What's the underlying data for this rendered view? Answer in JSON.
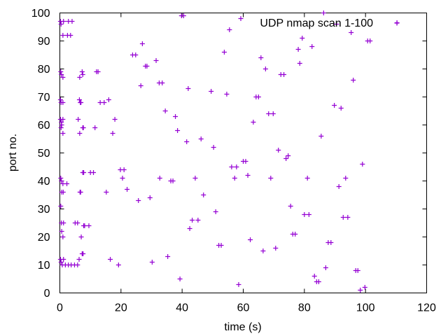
{
  "chart_data": {
    "type": "scatter",
    "title": "",
    "xlabel": "time (s)",
    "ylabel": "port no.",
    "xlim": [
      0,
      120
    ],
    "ylim": [
      0,
      100
    ],
    "xticks": [
      0,
      20,
      40,
      60,
      80,
      100,
      120
    ],
    "yticks": [
      0,
      10,
      20,
      30,
      40,
      50,
      60,
      70,
      80,
      90,
      100
    ],
    "grid": false,
    "legend": "top-right",
    "marker": "plus",
    "series": [
      {
        "name": "UDP nmap scan 1-100",
        "color": "#9400d3",
        "points": [
          [
            0.2,
            97
          ],
          [
            0.4,
            96
          ],
          [
            1,
            92
          ],
          [
            1.2,
            97
          ],
          [
            2.5,
            92
          ],
          [
            2.8,
            97
          ],
          [
            3.5,
            92
          ],
          [
            4,
            97
          ],
          [
            0.3,
            79
          ],
          [
            0.5,
            78
          ],
          [
            1,
            77
          ],
          [
            6.5,
            77
          ],
          [
            7.3,
            79
          ],
          [
            7.5,
            78
          ],
          [
            12,
            79
          ],
          [
            12.5,
            79
          ],
          [
            0.2,
            69
          ],
          [
            0.4,
            68
          ],
          [
            1,
            68
          ],
          [
            6.4,
            69
          ],
          [
            6.7,
            68
          ],
          [
            6.9,
            68
          ],
          [
            13.2,
            68
          ],
          [
            14.5,
            68
          ],
          [
            16,
            69
          ],
          [
            0.2,
            62
          ],
          [
            0.5,
            61
          ],
          [
            1,
            62
          ],
          [
            0.4,
            59
          ],
          [
            0.6,
            60
          ],
          [
            1,
            57
          ],
          [
            6,
            62
          ],
          [
            6.5,
            57
          ],
          [
            7.5,
            59
          ],
          [
            7.7,
            59
          ],
          [
            11.5,
            59
          ],
          [
            17.3,
            57
          ],
          [
            18,
            62
          ],
          [
            0.3,
            41
          ],
          [
            0.5,
            40
          ],
          [
            1,
            39
          ],
          [
            0.6,
            36
          ],
          [
            1.1,
            36
          ],
          [
            2.3,
            39
          ],
          [
            6.6,
            36
          ],
          [
            6.8,
            36
          ],
          [
            7.5,
            43
          ],
          [
            7.8,
            43
          ],
          [
            10,
            43
          ],
          [
            11,
            43
          ],
          [
            15.2,
            36
          ],
          [
            19.8,
            44
          ],
          [
            20.5,
            41
          ],
          [
            21,
            44
          ],
          [
            22,
            37
          ],
          [
            0.3,
            31
          ],
          [
            0.5,
            25
          ],
          [
            0.6,
            22
          ],
          [
            1,
            20
          ],
          [
            1.2,
            25
          ],
          [
            5,
            25
          ],
          [
            5.8,
            25
          ],
          [
            7,
            20
          ],
          [
            7.8,
            24
          ],
          [
            8.1,
            24
          ],
          [
            9.5,
            24
          ],
          [
            0.2,
            12
          ],
          [
            0.4,
            11
          ],
          [
            0.8,
            10
          ],
          [
            1.2,
            12
          ],
          [
            1.8,
            10
          ],
          [
            2.8,
            10
          ],
          [
            3.7,
            10
          ],
          [
            4.8,
            10
          ],
          [
            5.8,
            10
          ],
          [
            6.3,
            12
          ],
          [
            7.3,
            14
          ],
          [
            7.6,
            14
          ],
          [
            16.5,
            12
          ],
          [
            19.2,
            10
          ],
          [
            23.8,
            85
          ],
          [
            24.8,
            85
          ],
          [
            27,
            89
          ],
          [
            28,
            81
          ],
          [
            28.5,
            81
          ],
          [
            31.5,
            83
          ],
          [
            26.5,
            74
          ],
          [
            32.5,
            75
          ],
          [
            33.5,
            75
          ],
          [
            34.5,
            65
          ],
          [
            37.8,
            63
          ],
          [
            38.5,
            58
          ],
          [
            39.8,
            99
          ],
          [
            40.5,
            99
          ],
          [
            41.5,
            54
          ],
          [
            42,
            73
          ],
          [
            25.7,
            33
          ],
          [
            29.5,
            34
          ],
          [
            30.2,
            11
          ],
          [
            32.7,
            41
          ],
          [
            35.3,
            13
          ],
          [
            36.3,
            40
          ],
          [
            37,
            40
          ],
          [
            39.3,
            5
          ],
          [
            42.5,
            23
          ],
          [
            43.3,
            26
          ],
          [
            44.3,
            41
          ],
          [
            45.2,
            26
          ],
          [
            46.2,
            55
          ],
          [
            47,
            35
          ],
          [
            49.5,
            72
          ],
          [
            50.3,
            52
          ],
          [
            51,
            29
          ],
          [
            52,
            17
          ],
          [
            52.8,
            17
          ],
          [
            53.8,
            86
          ],
          [
            54.6,
            71
          ],
          [
            55.5,
            94
          ],
          [
            56.2,
            45
          ],
          [
            57.2,
            41
          ],
          [
            57.8,
            45
          ],
          [
            58.5,
            3
          ],
          [
            59.2,
            98
          ],
          [
            60,
            47
          ],
          [
            60.8,
            47
          ],
          [
            61.5,
            42
          ],
          [
            62.3,
            19
          ],
          [
            63.3,
            61
          ],
          [
            64.2,
            70
          ],
          [
            65,
            70
          ],
          [
            65.8,
            84
          ],
          [
            66.5,
            15
          ],
          [
            67.3,
            80
          ],
          [
            68.3,
            64
          ],
          [
            69,
            41
          ],
          [
            69.8,
            64
          ],
          [
            70.6,
            16
          ],
          [
            71.5,
            51
          ],
          [
            72.3,
            78
          ],
          [
            73.3,
            78
          ],
          [
            74,
            48
          ],
          [
            74.7,
            49
          ],
          [
            75.5,
            31
          ],
          [
            76.2,
            21
          ],
          [
            77,
            21
          ],
          [
            78,
            87
          ],
          [
            78.5,
            82
          ],
          [
            79.3,
            91
          ],
          [
            80,
            28
          ],
          [
            81,
            41
          ],
          [
            81.5,
            28
          ],
          [
            82.5,
            88
          ],
          [
            83.3,
            6
          ],
          [
            84,
            4
          ],
          [
            84.7,
            4
          ],
          [
            85.5,
            56
          ],
          [
            86.3,
            100
          ],
          [
            87,
            9
          ],
          [
            87.8,
            18
          ],
          [
            88.7,
            18
          ],
          [
            89.8,
            67
          ],
          [
            90.5,
            96
          ],
          [
            91.3,
            38
          ],
          [
            92,
            66
          ],
          [
            92.7,
            27
          ],
          [
            93.5,
            41
          ],
          [
            94.2,
            27
          ],
          [
            95.3,
            93
          ],
          [
            96,
            76
          ],
          [
            96.8,
            8
          ],
          [
            97.5,
            8
          ],
          [
            98.3,
            1
          ],
          [
            99,
            46
          ],
          [
            99.8,
            2
          ],
          [
            100.7,
            90
          ],
          [
            101.5,
            90
          ],
          [
            110.3,
            96.5
          ]
        ]
      }
    ]
  }
}
